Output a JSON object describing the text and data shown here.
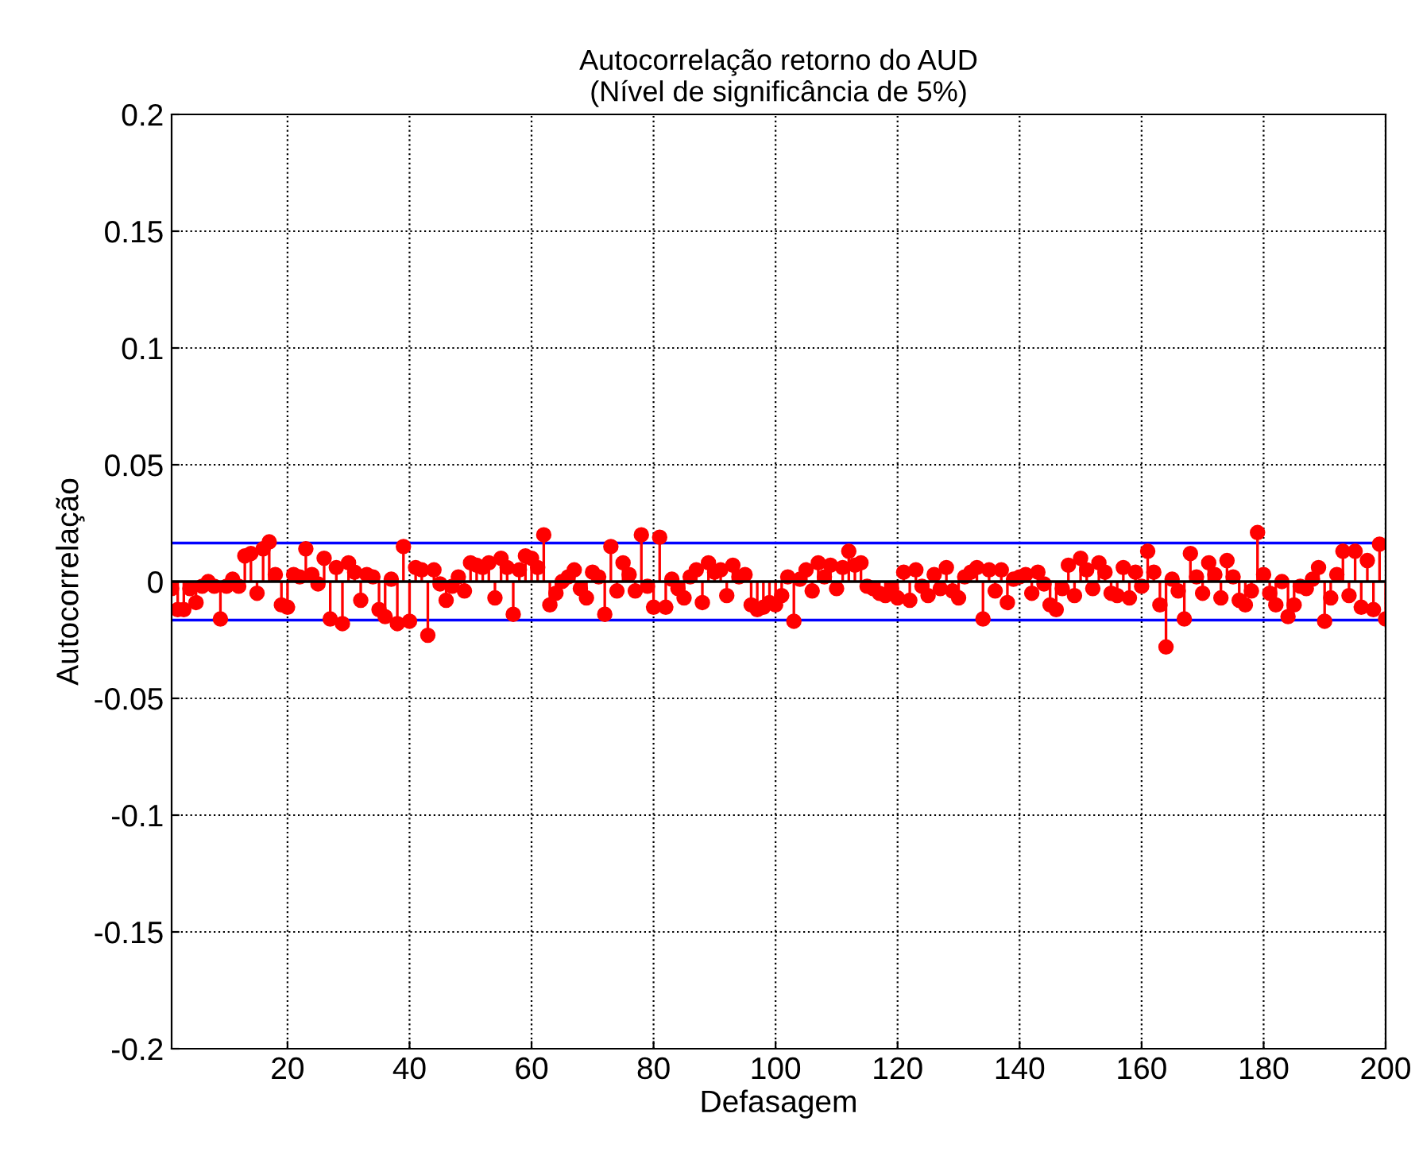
{
  "chart_data": {
    "type": "lollipop",
    "title": "Autocorrelação retorno do AUD\n(Nível de significância de 5%)",
    "xlabel": "Defasagem",
    "ylabel": "Autocorrelação",
    "x": [
      1,
      2,
      3,
      4,
      5,
      6,
      7,
      8,
      9,
      10,
      11,
      12,
      13,
      14,
      15,
      16,
      17,
      18,
      19,
      20,
      21,
      22,
      23,
      24,
      25,
      26,
      27,
      28,
      29,
      30,
      31,
      32,
      33,
      34,
      35,
      36,
      37,
      38,
      39,
      40,
      41,
      42,
      43,
      44,
      45,
      46,
      47,
      48,
      49,
      50,
      51,
      52,
      53,
      54,
      55,
      56,
      57,
      58,
      59,
      60,
      61,
      62,
      63,
      64,
      65,
      66,
      67,
      68,
      69,
      70,
      71,
      72,
      73,
      74,
      75,
      76,
      77,
      78,
      79,
      80,
      81,
      82,
      83,
      84,
      85,
      86,
      87,
      88,
      89,
      90,
      91,
      92,
      93,
      94,
      95,
      96,
      97,
      98,
      99,
      100,
      101,
      102,
      103,
      104,
      105,
      106,
      107,
      108,
      109,
      110,
      111,
      112,
      113,
      114,
      115,
      116,
      117,
      118,
      119,
      120,
      121,
      122,
      123,
      124,
      125,
      126,
      127,
      128,
      129,
      130,
      131,
      132,
      133,
      134,
      135,
      136,
      137,
      138,
      139,
      140,
      141,
      142,
      143,
      144,
      145,
      146,
      147,
      148,
      149,
      150,
      151,
      152,
      153,
      154,
      155,
      156,
      157,
      158,
      159,
      160,
      161,
      162,
      163,
      164,
      165,
      166,
      167,
      168,
      169,
      170,
      171,
      172,
      173,
      174,
      175,
      176,
      177,
      178,
      179,
      180,
      181,
      182,
      183,
      184,
      185,
      186,
      187,
      188,
      189,
      190,
      191,
      192,
      193,
      194,
      195,
      196,
      197,
      198,
      199,
      200
    ],
    "series": [
      {
        "color": "#ff0000",
        "marker": "circle",
        "values": [
          -0.003,
          -0.012,
          -0.012,
          -0.003,
          -0.009,
          -0.002,
          0.0,
          -0.002,
          -0.016,
          -0.002,
          0.001,
          -0.002,
          0.011,
          0.012,
          -0.005,
          0.014,
          0.017,
          0.003,
          -0.01,
          -0.011,
          0.003,
          0.002,
          0.014,
          0.003,
          -0.001,
          0.01,
          -0.016,
          0.006,
          -0.018,
          0.008,
          0.004,
          -0.008,
          0.003,
          0.002,
          -0.012,
          -0.015,
          0.001,
          -0.018,
          0.015,
          -0.017,
          0.006,
          0.005,
          -0.023,
          0.005,
          -0.001,
          -0.008,
          -0.002,
          0.002,
          -0.004,
          0.008,
          0.007,
          0.006,
          0.008,
          -0.007,
          0.01,
          0.006,
          -0.014,
          0.005,
          0.011,
          0.01,
          0.006,
          0.02,
          -0.01,
          -0.005,
          0.0,
          0.002,
          0.005,
          -0.003,
          -0.007,
          0.004,
          0.002,
          -0.014,
          0.015,
          -0.004,
          0.008,
          0.003,
          -0.004,
          0.02,
          -0.002,
          -0.011,
          0.019,
          -0.011,
          0.001,
          -0.003,
          -0.007,
          0.002,
          0.005,
          -0.009,
          0.008,
          0.004,
          0.005,
          -0.006,
          0.007,
          0.002,
          0.003,
          -0.01,
          -0.012,
          -0.011,
          -0.009,
          -0.01,
          -0.006,
          0.002,
          -0.017,
          0.001,
          0.005,
          -0.004,
          0.008,
          0.002,
          0.007,
          -0.003,
          0.006,
          0.013,
          0.007,
          0.008,
          -0.002,
          -0.003,
          -0.005,
          -0.006,
          -0.003,
          -0.007,
          0.004,
          -0.008,
          0.005,
          -0.002,
          -0.006,
          0.003,
          -0.003,
          0.006,
          -0.004,
          -0.007,
          0.002,
          0.004,
          0.006,
          -0.016,
          0.005,
          -0.004,
          0.005,
          -0.009,
          0.001,
          0.002,
          0.003,
          -0.005,
          0.004,
          -0.001,
          -0.01,
          -0.012,
          -0.003,
          0.007,
          -0.006,
          0.01,
          0.005,
          -0.003,
          0.008,
          0.004,
          -0.005,
          -0.006,
          0.006,
          -0.007,
          0.004,
          -0.002,
          0.013,
          0.004,
          -0.01,
          -0.028,
          0.001,
          -0.004,
          -0.016,
          0.012,
          0.002,
          -0.005,
          0.008,
          0.003,
          -0.007,
          0.009,
          0.002,
          -0.008,
          -0.01,
          -0.004,
          0.021,
          0.003,
          -0.005,
          -0.01,
          0.0,
          -0.015,
          -0.01,
          -0.002,
          -0.003,
          0.001,
          0.006,
          -0.017,
          -0.007,
          0.003,
          0.013,
          -0.006,
          0.013,
          -0.011,
          0.009,
          -0.012,
          0.016,
          -0.016
        ]
      }
    ],
    "ref_lines": [
      {
        "axis": "y",
        "value": 0.0165,
        "color": "#0000ff"
      },
      {
        "axis": "y",
        "value": -0.0165,
        "color": "#0000ff"
      }
    ],
    "xlim": [
      1,
      200
    ],
    "xticks": [
      20,
      40,
      60,
      80,
      100,
      120,
      140,
      160,
      180,
      200
    ],
    "ylim": [
      -0.2,
      0.2
    ],
    "yticks": [
      -0.2,
      -0.15,
      -0.1,
      -0.05,
      0,
      0.05,
      0.1,
      0.15,
      0.2
    ],
    "grid": true,
    "line_style": "dotted"
  }
}
